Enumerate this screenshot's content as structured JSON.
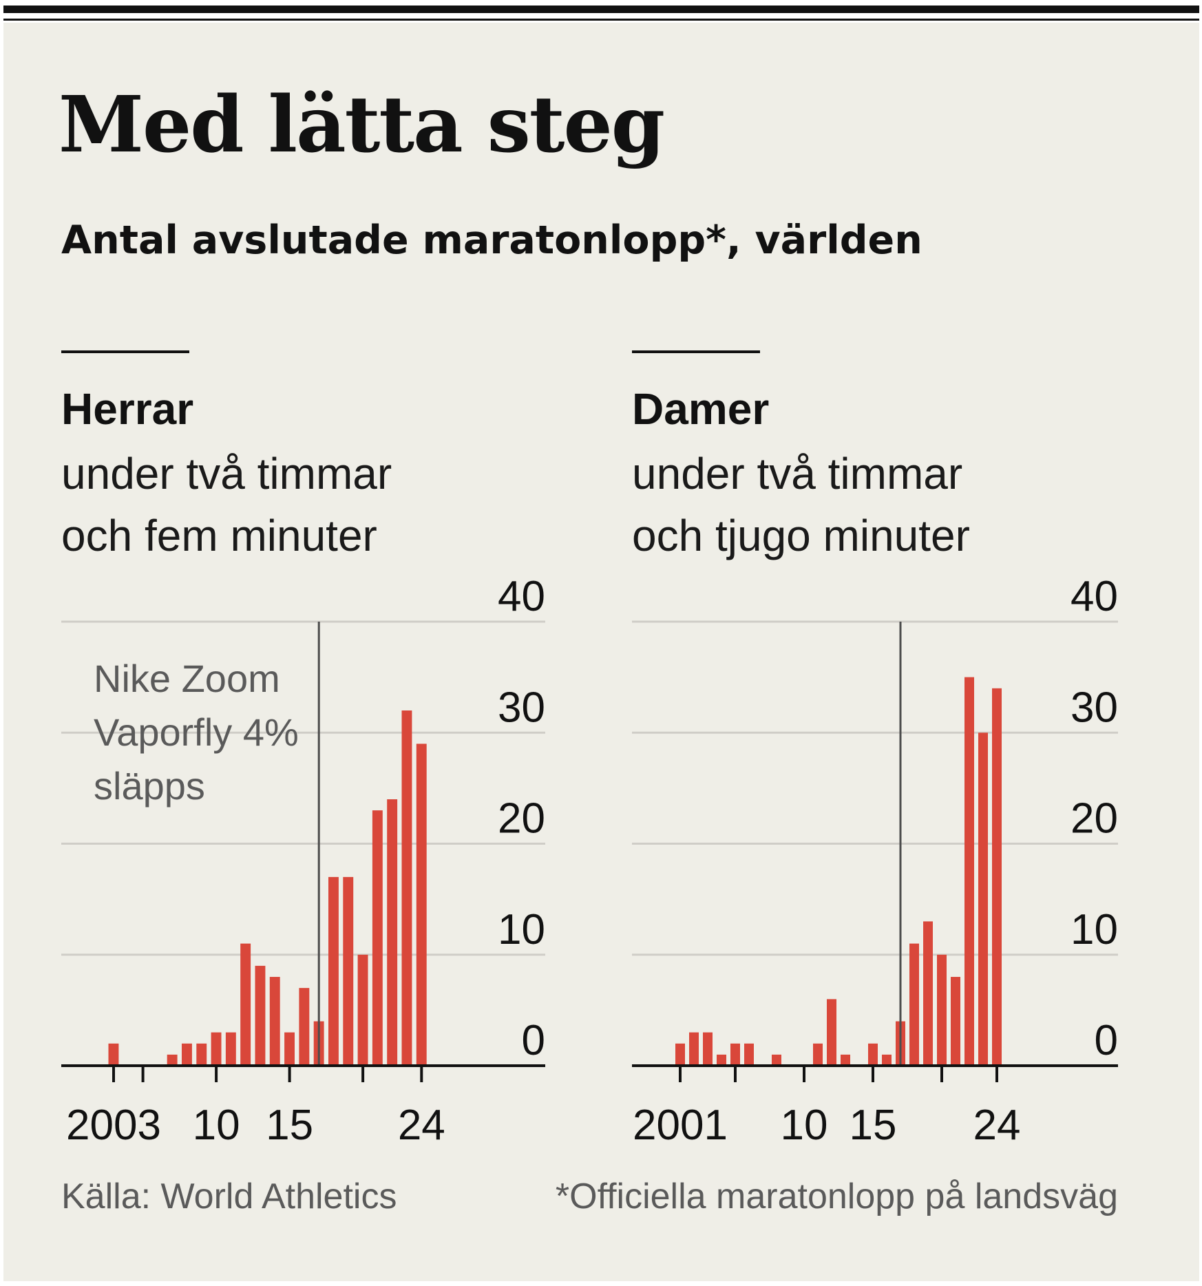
{
  "title": "Med lätta steg",
  "subtitle": "Antal avslutade maratonlopp*, världen",
  "source": "Källa: World Athletics",
  "footnote": "*Officiella maratonlopp på landsväg",
  "colors": {
    "bar": "#d9473a",
    "background": "#efeee7",
    "grid": "#cfcdc7",
    "marker": "#4d4d4d",
    "text": "#111111",
    "muted": "#5a5a5a"
  },
  "chart_data": [
    {
      "type": "bar",
      "title": "Herrar",
      "subtitle_lines": [
        "under två timmar",
        "och fem minuter"
      ],
      "x": [
        2003,
        2004,
        2005,
        2006,
        2007,
        2008,
        2009,
        2010,
        2011,
        2012,
        2013,
        2014,
        2015,
        2016,
        2017,
        2018,
        2019,
        2020,
        2021,
        2022,
        2023,
        2024
      ],
      "values": [
        2,
        0,
        0,
        0,
        1,
        2,
        2,
        3,
        3,
        11,
        9,
        8,
        3,
        7,
        4,
        17,
        17,
        10,
        23,
        24,
        32,
        29
      ],
      "ylim": [
        0,
        40
      ],
      "yticks": [
        0,
        10,
        20,
        30,
        40
      ],
      "xtick_labels": [
        {
          "x": 2003,
          "label": "2003"
        },
        {
          "x": 2005,
          "label": ""
        },
        {
          "x": 2010,
          "label": "10"
        },
        {
          "x": 2015,
          "label": "15"
        },
        {
          "x": 2020,
          "label": ""
        },
        {
          "x": 2024,
          "label": "24"
        }
      ],
      "annotation": {
        "x": 2017,
        "lines": [
          "Nike Zoom",
          "Vaporfly 4%",
          "släpps"
        ]
      },
      "grid": true
    },
    {
      "type": "bar",
      "title": "Damer",
      "subtitle_lines": [
        "under två timmar",
        "och tjugo minuter"
      ],
      "x": [
        2001,
        2002,
        2003,
        2004,
        2005,
        2006,
        2007,
        2008,
        2009,
        2010,
        2011,
        2012,
        2013,
        2014,
        2015,
        2016,
        2017,
        2018,
        2019,
        2020,
        2021,
        2022,
        2023,
        2024
      ],
      "values": [
        2,
        3,
        3,
        1,
        2,
        2,
        0,
        1,
        0,
        0,
        2,
        6,
        1,
        0,
        2,
        1,
        4,
        11,
        13,
        10,
        8,
        35,
        30,
        34
      ],
      "ylim": [
        0,
        40
      ],
      "yticks": [
        0,
        10,
        20,
        30,
        40
      ],
      "xtick_labels": [
        {
          "x": 2001,
          "label": "2001"
        },
        {
          "x": 2005,
          "label": ""
        },
        {
          "x": 2010,
          "label": "10"
        },
        {
          "x": 2015,
          "label": "15"
        },
        {
          "x": 2020,
          "label": ""
        },
        {
          "x": 2024,
          "label": "24"
        }
      ],
      "annotation": {
        "x": 2017,
        "lines": []
      },
      "grid": true
    }
  ]
}
